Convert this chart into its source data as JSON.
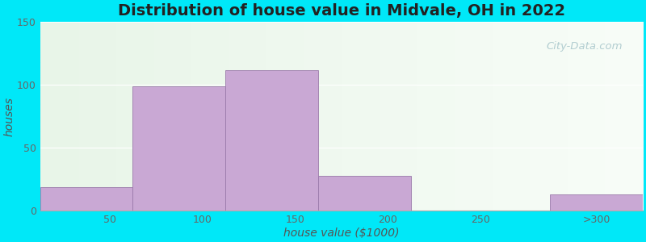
{
  "title": "Distribution of house value in Midvale, OH in 2022",
  "xlabel": "house value ($1000)",
  "ylabel": "houses",
  "bar_labels": [
    "50",
    "100",
    "150",
    "200",
    "250",
    ">300"
  ],
  "bar_heights": [
    19,
    99,
    112,
    28,
    0,
    13
  ],
  "bar_color": "#c9a8d4",
  "bar_edgecolor": "#9a7aaa",
  "background_outer": "#00e8f8",
  "ylim": [
    0,
    150
  ],
  "yticks": [
    0,
    50,
    100,
    150
  ],
  "watermark": "City-Data.com",
  "title_fontsize": 14,
  "axis_label_fontsize": 10,
  "tick_fontsize": 9,
  "title_color": "#222222",
  "label_color": "#555555",
  "tick_color": "#666666"
}
